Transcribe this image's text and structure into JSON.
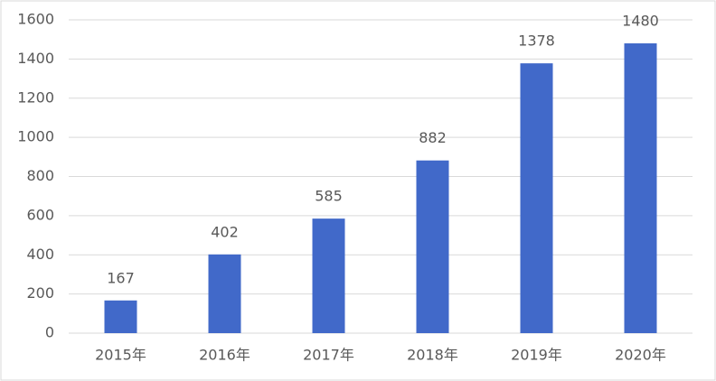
{
  "chart_data": {
    "type": "bar",
    "categories": [
      "2015年",
      "2016年",
      "2017年",
      "2018年",
      "2019年",
      "2020年"
    ],
    "values": [
      167,
      402,
      585,
      882,
      1378,
      1480
    ],
    "color": "#4169c9",
    "ylim": [
      0,
      1600
    ],
    "yticks": [
      0,
      200,
      400,
      600,
      800,
      1000,
      1200,
      1400,
      1600
    ],
    "grid": true,
    "data_labels": true
  }
}
